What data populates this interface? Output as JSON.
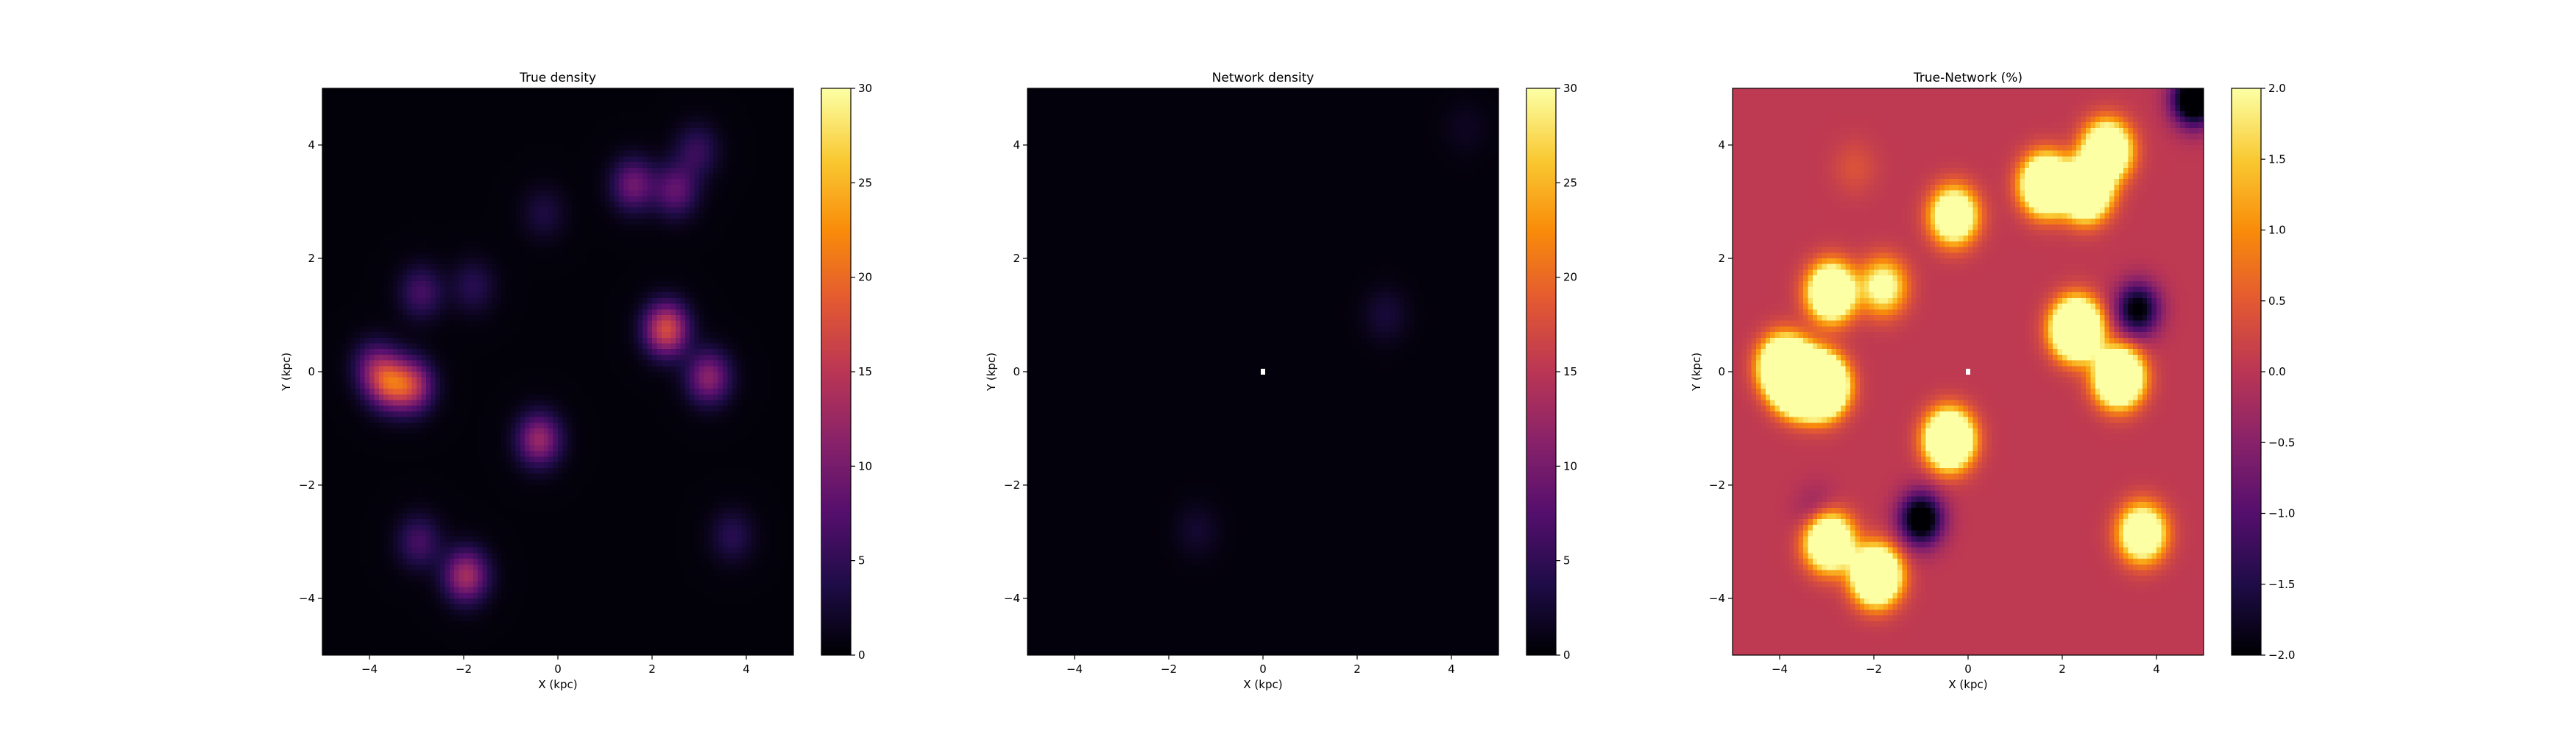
{
  "chart_data": [
    {
      "type": "heatmap",
      "title": "True density",
      "xlabel": "X (kpc)",
      "ylabel": "Y (kpc)",
      "xlim": [
        -5,
        5
      ],
      "ylim": [
        -5,
        5
      ],
      "xticks": [
        -4,
        -2,
        0,
        2,
        4
      ],
      "yticks": [
        -4,
        -2,
        0,
        2,
        4
      ],
      "xtick_labels": [
        "−4",
        "−2",
        "0",
        "2",
        "4"
      ],
      "ytick_labels": [
        "−4",
        "−2",
        "0",
        "2",
        "4"
      ],
      "colormap": "inferno",
      "vmin": 0,
      "vmax": 30,
      "colorbar_ticks": [
        0,
        5,
        10,
        15,
        20,
        25,
        30
      ],
      "colorbar_tick_labels": [
        "0",
        "5",
        "10",
        "15",
        "20",
        "25",
        "30"
      ],
      "background_value": 0.3,
      "blobs": [
        {
          "x": -3.6,
          "y": -0.2,
          "peak": 14
        },
        {
          "x": -3.1,
          "y": -0.25,
          "peak": 13
        },
        {
          "x": -3.9,
          "y": 0.1,
          "peak": 7
        },
        {
          "x": -2.9,
          "y": 1.4,
          "peak": 6
        },
        {
          "x": -1.8,
          "y": 1.5,
          "peak": 4
        },
        {
          "x": -0.4,
          "y": -1.2,
          "peak": 12
        },
        {
          "x": -0.3,
          "y": 2.8,
          "peak": 3
        },
        {
          "x": 1.6,
          "y": 3.3,
          "peak": 9
        },
        {
          "x": 2.5,
          "y": 3.2,
          "peak": 8
        },
        {
          "x": 2.95,
          "y": 3.9,
          "peak": 5
        },
        {
          "x": 2.3,
          "y": 0.75,
          "peak": 17
        },
        {
          "x": 3.2,
          "y": -0.1,
          "peak": 11
        },
        {
          "x": -1.95,
          "y": -3.6,
          "peak": 13
        },
        {
          "x": -2.95,
          "y": -3.0,
          "peak": 6
        },
        {
          "x": 3.7,
          "y": -2.9,
          "peak": 4
        }
      ]
    },
    {
      "type": "heatmap",
      "title": "Network density",
      "xlabel": "X (kpc)",
      "ylabel": "Y (kpc)",
      "xlim": [
        -5,
        5
      ],
      "ylim": [
        -5,
        5
      ],
      "xticks": [
        -4,
        -2,
        0,
        2,
        4
      ],
      "yticks": [
        -4,
        -2,
        0,
        2,
        4
      ],
      "xtick_labels": [
        "−4",
        "−2",
        "0",
        "2",
        "4"
      ],
      "ytick_labels": [
        "−4",
        "−2",
        "0",
        "2",
        "4"
      ],
      "colormap": "inferno",
      "vmin": 0,
      "vmax": 30,
      "colorbar_ticks": [
        0,
        5,
        10,
        15,
        20,
        25,
        30
      ],
      "colorbar_tick_labels": [
        "0",
        "5",
        "10",
        "15",
        "20",
        "25",
        "30"
      ],
      "background_value": 0.4,
      "blobs": [
        {
          "x": 2.6,
          "y": 1.0,
          "peak": 2.5
        },
        {
          "x": -1.4,
          "y": -2.8,
          "peak": 2.0
        },
        {
          "x": 4.3,
          "y": 4.3,
          "peak": 1.2
        }
      ],
      "center_marker": {
        "x": 0,
        "y": 0,
        "color": "#ffffff"
      }
    },
    {
      "type": "heatmap",
      "title": "True-Network (%)",
      "xlabel": "X (kpc)",
      "ylabel": "Y (kpc)",
      "xlim": [
        -5,
        5
      ],
      "ylim": [
        -5,
        5
      ],
      "xticks": [
        -4,
        -2,
        0,
        2,
        4
      ],
      "yticks": [
        -4,
        -2,
        0,
        2,
        4
      ],
      "xtick_labels": [
        "−4",
        "−2",
        "0",
        "2",
        "4"
      ],
      "ytick_labels": [
        "−4",
        "−2",
        "0",
        "2",
        "4"
      ],
      "colormap": "inferno",
      "vmin": -2.0,
      "vmax": 2.0,
      "colorbar_ticks": [
        -2.0,
        -1.5,
        -1.0,
        -0.5,
        0.0,
        0.5,
        1.0,
        1.5,
        2.0
      ],
      "colorbar_tick_labels": [
        "−2.0",
        "−1.5",
        "−1.0",
        "−0.5",
        "0.0",
        "0.5",
        "1.0",
        "1.5",
        "2.0"
      ],
      "background_value": 0.05,
      "blobs": [
        {
          "x": -3.6,
          "y": -0.2,
          "peak": 8
        },
        {
          "x": -3.1,
          "y": -0.25,
          "peak": 8
        },
        {
          "x": -3.9,
          "y": 0.1,
          "peak": 6
        },
        {
          "x": -2.9,
          "y": 1.4,
          "peak": 5
        },
        {
          "x": -1.8,
          "y": 1.5,
          "peak": 2.5
        },
        {
          "x": -0.4,
          "y": -1.2,
          "peak": 6
        },
        {
          "x": -0.3,
          "y": 2.75,
          "peak": 4
        },
        {
          "x": 1.65,
          "y": 3.3,
          "peak": 6
        },
        {
          "x": 2.5,
          "y": 3.2,
          "peak": 6
        },
        {
          "x": 2.95,
          "y": 3.9,
          "peak": 5
        },
        {
          "x": 2.3,
          "y": 0.75,
          "peak": 7
        },
        {
          "x": 3.2,
          "y": -0.1,
          "peak": 6
        },
        {
          "x": -1.95,
          "y": -3.6,
          "peak": 6
        },
        {
          "x": -2.95,
          "y": -3.0,
          "peak": 5
        },
        {
          "x": 3.7,
          "y": -2.85,
          "peak": 4
        },
        {
          "x": -1.0,
          "y": -2.6,
          "peak": -2.6
        },
        {
          "x": 3.6,
          "y": 1.1,
          "peak": -2.2
        },
        {
          "x": 4.8,
          "y": 4.8,
          "peak": -3.0
        },
        {
          "x": -3.2,
          "y": -2.5,
          "peak": -0.6
        },
        {
          "x": -2.4,
          "y": 3.6,
          "peak": 0.35
        }
      ],
      "center_marker": {
        "x": 0,
        "y": 0,
        "color": "#ffffff"
      }
    }
  ]
}
